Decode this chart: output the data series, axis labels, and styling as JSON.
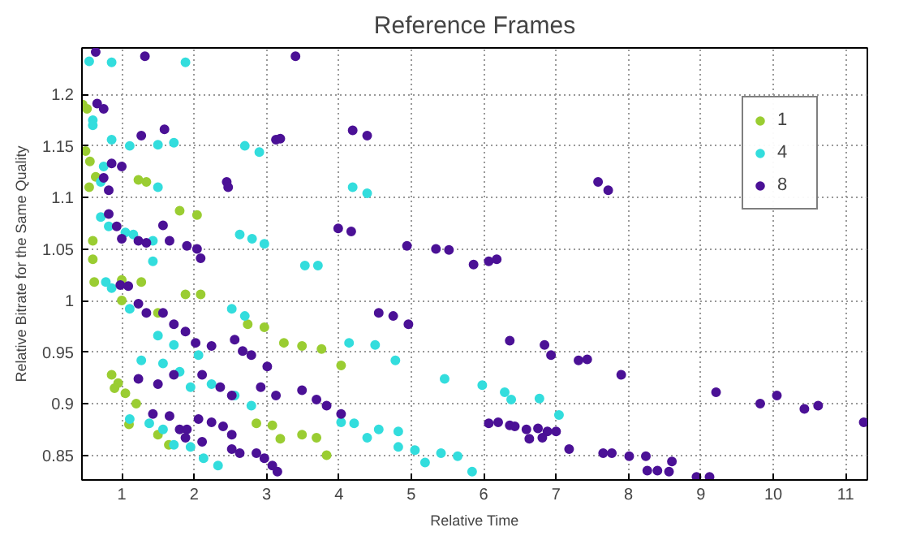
{
  "chart_data": {
    "type": "scatter",
    "title": "Reference Frames",
    "xlabel": "Relative Time",
    "ylabel": "Relative Bitrate for the Same Quality",
    "xlim": [
      0.45,
      11.3
    ],
    "ylim": [
      0.826,
      1.245
    ],
    "xticks": [
      1,
      2,
      3,
      4,
      5,
      6,
      7,
      8,
      9,
      10,
      11
    ],
    "yticks": [
      0.85,
      0.9,
      0.95,
      1,
      1.05,
      1.1,
      1.15,
      1.2
    ],
    "grid": true,
    "legend": "top right",
    "marker": "circle",
    "series": [
      {
        "name": "1",
        "color": "#9acd32",
        "x": [
          0.46,
          0.52,
          0.5,
          0.56,
          0.64,
          0.55,
          1.23,
          1.34,
          1.8,
          2.04,
          0.6,
          0.6,
          0.62,
          1.0,
          1.0,
          1.27,
          1.88,
          2.09,
          1.5,
          2.74,
          2.97,
          3.24,
          3.49,
          3.76,
          4.03,
          0.86,
          0.95,
          1.05,
          1.2,
          0.9,
          1.1,
          2.86,
          3.08,
          3.19,
          3.49,
          3.69,
          3.83,
          1.65,
          1.5
        ],
        "values": [
          1.19,
          1.186,
          1.145,
          1.135,
          1.12,
          1.11,
          1.117,
          1.115,
          1.087,
          1.083,
          1.058,
          1.04,
          1.018,
          1.02,
          1.0,
          1.018,
          1.006,
          1.006,
          0.988,
          0.977,
          0.974,
          0.959,
          0.956,
          0.953,
          0.937,
          0.928,
          0.92,
          0.91,
          0.9,
          0.915,
          0.88,
          0.881,
          0.879,
          0.866,
          0.87,
          0.867,
          0.85,
          0.86,
          0.87
        ]
      },
      {
        "name": "4",
        "color": "#33dddd",
        "x": [
          0.55,
          0.86,
          1.88,
          0.6,
          0.6,
          0.86,
          1.11,
          1.5,
          1.72,
          2.7,
          2.9,
          0.75,
          0.71,
          1.5,
          4.19,
          4.39,
          0.71,
          0.82,
          1.05,
          1.16,
          1.43,
          2.63,
          2.8,
          2.97,
          1.43,
          3.53,
          3.71,
          0.78,
          0.86,
          1.11,
          1.5,
          1.72,
          2.06,
          2.52,
          2.7,
          1.27,
          1.57,
          1.8,
          1.95,
          2.24,
          2.56,
          2.79,
          1.11,
          1.38,
          1.57,
          1.72,
          1.95,
          2.13,
          2.33,
          4.03,
          4.21,
          4.39,
          4.55,
          4.14,
          4.5,
          4.78,
          4.82,
          4.82,
          5.05,
          5.19,
          5.46,
          5.98,
          6.29,
          6.38,
          6.77,
          7.04,
          5.41,
          5.64,
          5.84
        ],
        "values": [
          1.232,
          1.231,
          1.231,
          1.175,
          1.17,
          1.156,
          1.15,
          1.151,
          1.153,
          1.15,
          1.144,
          1.13,
          1.115,
          1.11,
          1.11,
          1.104,
          1.081,
          1.072,
          1.066,
          1.064,
          1.058,
          1.064,
          1.06,
          1.055,
          1.038,
          1.034,
          1.034,
          1.018,
          1.012,
          0.992,
          0.966,
          0.957,
          0.947,
          0.992,
          0.985,
          0.942,
          0.939,
          0.931,
          0.916,
          0.919,
          0.908,
          0.898,
          0.885,
          0.881,
          0.875,
          0.86,
          0.858,
          0.847,
          0.84,
          0.882,
          0.881,
          0.867,
          0.875,
          0.959,
          0.957,
          0.942,
          0.873,
          0.858,
          0.855,
          0.843,
          0.924,
          0.918,
          0.911,
          0.904,
          0.905,
          0.889,
          0.852,
          0.849,
          0.834
        ]
      },
      {
        "name": "8",
        "color": "#4b1196",
        "x": [
          0.64,
          1.32,
          3.4,
          0.66,
          0.75,
          1.27,
          1.59,
          3.13,
          3.19,
          4.19,
          4.39,
          0.86,
          1.0,
          0.75,
          0.82,
          2.45,
          2.47,
          0.82,
          0.93,
          1.0,
          1.23,
          1.34,
          1.57,
          1.66,
          1.9,
          2.04,
          2.09,
          3.99,
          4.17,
          4.94,
          5.34,
          5.52,
          5.86,
          6.07,
          6.18,
          7.58,
          7.72,
          0.98,
          1.09,
          1.23,
          1.34,
          1.57,
          1.72,
          1.88,
          2.02,
          2.24,
          2.56,
          2.67,
          2.79,
          3.01,
          4.55,
          4.75,
          4.96,
          1.23,
          1.5,
          1.72,
          2.11,
          2.36,
          2.52,
          2.92,
          3.13,
          3.49,
          3.69,
          3.83,
          4.03,
          1.43,
          1.66,
          1.8,
          1.9,
          2.06,
          2.24,
          2.4,
          2.52,
          2.52,
          2.63,
          2.86,
          2.97,
          3.08,
          3.15,
          2.11,
          1.88,
          6.07,
          6.2,
          6.36,
          6.43,
          6.59,
          6.75,
          6.88,
          7.0,
          6.63,
          6.81,
          6.36,
          6.84,
          6.93,
          7.31,
          7.43,
          7.9,
          9.21,
          9.82,
          10.05,
          10.43,
          10.62,
          11.25,
          7.18,
          7.65,
          7.77,
          8.01,
          8.24,
          8.26,
          8.4,
          8.56,
          8.6,
          8.94,
          9.12
        ],
        "values": [
          1.241,
          1.237,
          1.237,
          1.191,
          1.186,
          1.16,
          1.166,
          1.156,
          1.157,
          1.165,
          1.16,
          1.133,
          1.13,
          1.119,
          1.107,
          1.115,
          1.11,
          1.084,
          1.072,
          1.06,
          1.058,
          1.056,
          1.073,
          1.058,
          1.053,
          1.05,
          1.041,
          1.07,
          1.067,
          1.053,
          1.05,
          1.049,
          1.035,
          1.038,
          1.04,
          1.115,
          1.107,
          1.015,
          1.014,
          0.997,
          0.988,
          0.988,
          0.977,
          0.97,
          0.959,
          0.956,
          0.962,
          0.951,
          0.947,
          0.936,
          0.988,
          0.985,
          0.977,
          0.924,
          0.919,
          0.928,
          0.928,
          0.916,
          0.908,
          0.916,
          0.908,
          0.913,
          0.904,
          0.898,
          0.89,
          0.89,
          0.888,
          0.875,
          0.875,
          0.885,
          0.882,
          0.878,
          0.87,
          0.856,
          0.852,
          0.852,
          0.847,
          0.84,
          0.834,
          0.863,
          0.867,
          0.881,
          0.882,
          0.879,
          0.878,
          0.875,
          0.876,
          0.873,
          0.873,
          0.866,
          0.867,
          0.961,
          0.957,
          0.947,
          0.942,
          0.943,
          0.928,
          0.911,
          0.9,
          0.908,
          0.895,
          0.898,
          0.882,
          0.856,
          0.852,
          0.852,
          0.849,
          0.849,
          0.835,
          0.835,
          0.834,
          0.844,
          0.829,
          0.829
        ]
      }
    ]
  }
}
